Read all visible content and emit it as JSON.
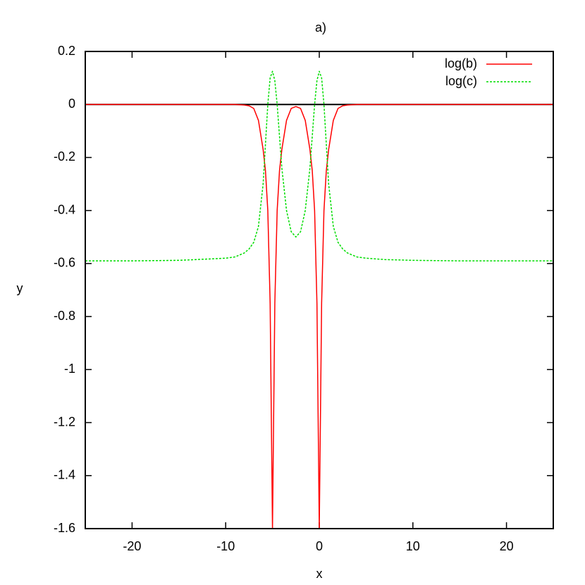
{
  "chart_data": {
    "type": "line",
    "title": "a)",
    "xlabel": "x",
    "ylabel": "y",
    "x": [
      -25,
      -20,
      -15,
      -10,
      -9,
      -8,
      -7.5,
      -7,
      -6.5,
      -6,
      -5.75,
      -5.5,
      -5.25,
      -5,
      -4.75,
      -4.5,
      -4.25,
      -4,
      -3.5,
      -3,
      -2.5,
      -2,
      -1.5,
      -1,
      -0.75,
      -0.5,
      -0.25,
      0,
      0.25,
      0.5,
      0.75,
      1,
      1.5,
      2,
      2.5,
      3,
      4,
      5,
      7,
      10,
      15,
      20,
      25
    ],
    "series": [
      {
        "name": "log(b)",
        "color": "#ff0000",
        "style": "solid",
        "values": [
          0,
          0,
          0,
          0,
          0,
          -0.002,
          -0.005,
          -0.015,
          -0.06,
          -0.17,
          -0.25,
          -0.4,
          -0.75,
          -1.6,
          -0.75,
          -0.4,
          -0.25,
          -0.17,
          -0.06,
          -0.015,
          -0.008,
          -0.015,
          -0.06,
          -0.17,
          -0.25,
          -0.4,
          -0.75,
          -1.6,
          -0.75,
          -0.4,
          -0.25,
          -0.17,
          -0.06,
          -0.015,
          -0.005,
          -0.002,
          0,
          0,
          0,
          0,
          0,
          0,
          0
        ]
      },
      {
        "name": "log(c)",
        "color": "#00dd00",
        "style": "dashed",
        "values": [
          -0.59,
          -0.59,
          -0.588,
          -0.58,
          -0.575,
          -0.56,
          -0.545,
          -0.52,
          -0.46,
          -0.3,
          -0.15,
          0.0,
          0.1,
          0.125,
          0.09,
          0.0,
          -0.12,
          -0.24,
          -0.4,
          -0.48,
          -0.5,
          -0.48,
          -0.4,
          -0.24,
          -0.12,
          0.0,
          0.09,
          0.125,
          0.1,
          0.0,
          -0.15,
          -0.3,
          -0.46,
          -0.52,
          -0.545,
          -0.56,
          -0.575,
          -0.58,
          -0.585,
          -0.588,
          -0.59,
          -0.59,
          -0.59
        ]
      }
    ],
    "xlim": [
      -25,
      25
    ],
    "xticks": [
      -20,
      -10,
      0,
      10,
      20
    ],
    "ylim": [
      -1.6,
      0.2
    ],
    "yticks": [
      0.2,
      0,
      -0.2,
      -0.4,
      -0.6,
      -0.8,
      -1,
      -1.2,
      -1.4,
      -1.6
    ],
    "grid": false,
    "legend": "top-right"
  }
}
